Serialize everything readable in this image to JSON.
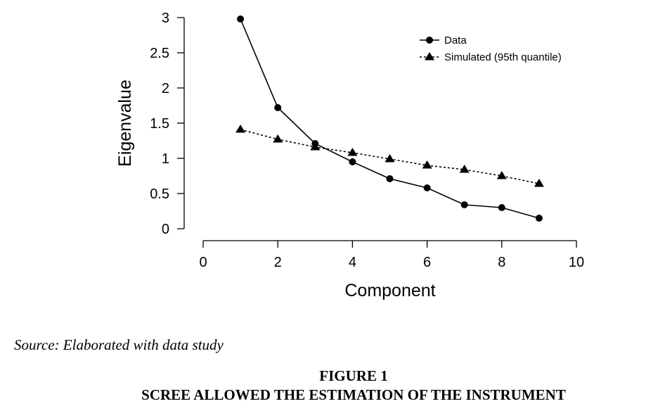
{
  "chart_data": {
    "type": "line",
    "xlabel": "Component",
    "ylabel": "Eigenvalue",
    "xlim": [
      0,
      10
    ],
    "ylim": [
      0,
      3
    ],
    "xticks": [
      0,
      2,
      4,
      6,
      8,
      10
    ],
    "yticks": [
      0,
      0.5,
      1,
      1.5,
      2,
      2.5,
      3
    ],
    "grid": false,
    "legend_position": "top-right",
    "series": [
      {
        "name": "Data",
        "marker": "circle",
        "line_style": "solid",
        "color": "#000000",
        "x": [
          1,
          2,
          3,
          4,
          5,
          6,
          7,
          8,
          9
        ],
        "y": [
          2.98,
          1.72,
          1.21,
          0.95,
          0.71,
          0.58,
          0.34,
          0.3,
          0.15
        ]
      },
      {
        "name": "Simulated (95th quantile)",
        "marker": "triangle",
        "line_style": "dotted",
        "color": "#000000",
        "x": [
          1,
          2,
          3,
          4,
          5,
          6,
          7,
          8,
          9
        ],
        "y": [
          1.41,
          1.27,
          1.16,
          1.08,
          0.99,
          0.9,
          0.84,
          0.75,
          0.64
        ]
      }
    ]
  },
  "source_note": "Source: Elaborated with data study",
  "figure_caption": {
    "number": "FIGURE 1",
    "title": "SCREE ALLOWED THE ESTIMATION OF THE INSTRUMENT"
  }
}
